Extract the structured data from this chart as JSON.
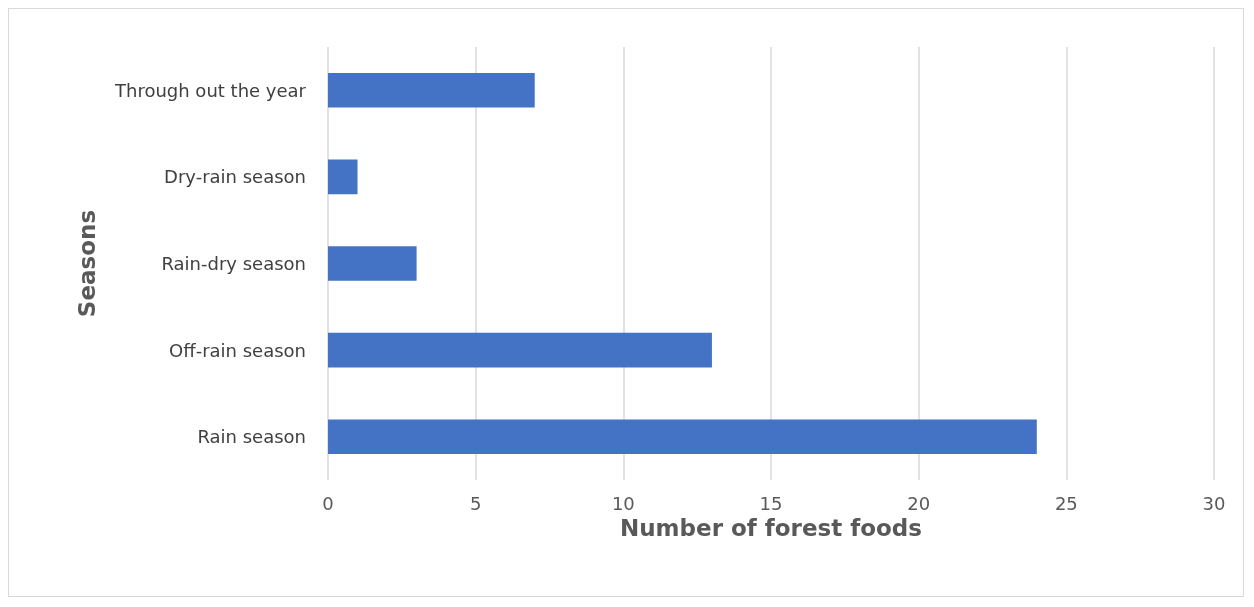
{
  "chart_data": {
    "type": "bar",
    "orientation": "horizontal",
    "xlabel": "Number of forest foods",
    "ylabel": "Seasons",
    "categories": [
      "Through out the year",
      "Dry-rain season",
      "Rain-dry season",
      "Off-rain season",
      "Rain season"
    ],
    "values": [
      7,
      1,
      3,
      13,
      24
    ],
    "color": "#4472c4",
    "xlim": [
      0,
      30
    ],
    "xticks": [
      0,
      5,
      10,
      15,
      20,
      25,
      30
    ],
    "grid": "x"
  }
}
